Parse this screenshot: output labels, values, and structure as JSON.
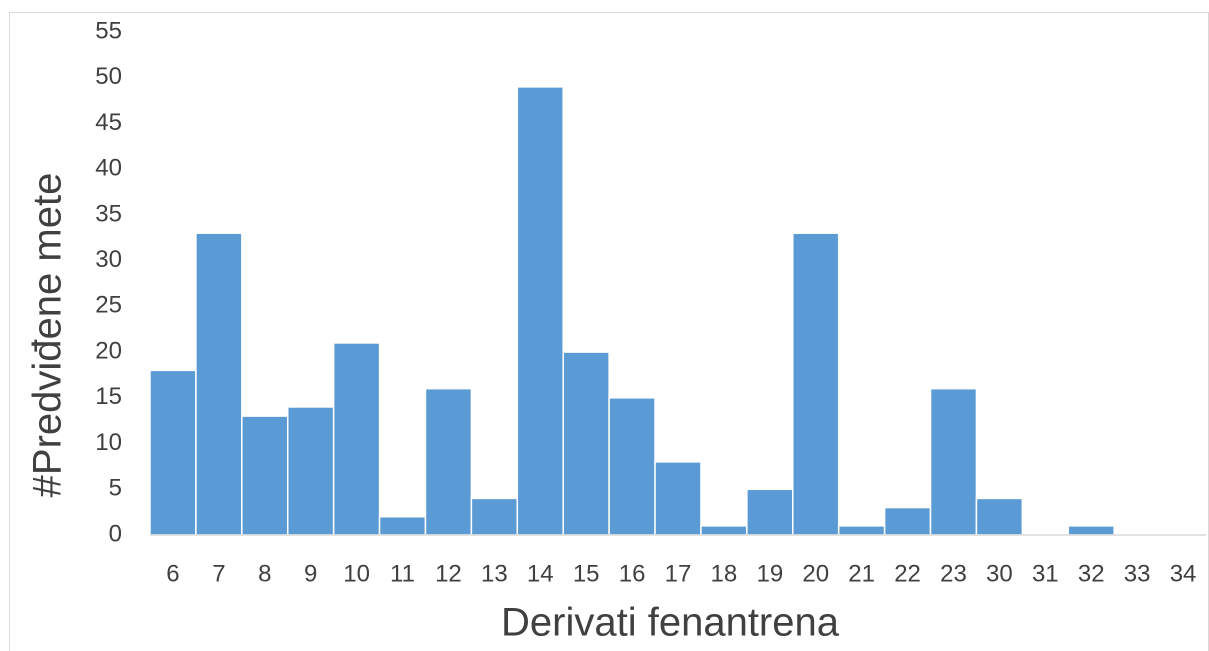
{
  "chart_data": {
    "type": "bar",
    "categories": [
      "6",
      "7",
      "8",
      "9",
      "10",
      "11",
      "12",
      "13",
      "14",
      "15",
      "16",
      "17",
      "18",
      "19",
      "20",
      "21",
      "22",
      "23",
      "30",
      "31",
      "32",
      "33",
      "34"
    ],
    "values": [
      18,
      33,
      13,
      14,
      21,
      2,
      16,
      4,
      49,
      20,
      15,
      8,
      1,
      5,
      33,
      1,
      3,
      16,
      4,
      0,
      1,
      0,
      0
    ],
    "color": "#5b9bd5",
    "xlabel": "Derivati fenantrena",
    "ylabel": "#Predviđene mete",
    "ylim": [
      0,
      55
    ],
    "yticks": [
      0,
      5,
      10,
      15,
      20,
      25,
      30,
      35,
      40,
      45,
      50,
      55
    ],
    "grid": false
  }
}
